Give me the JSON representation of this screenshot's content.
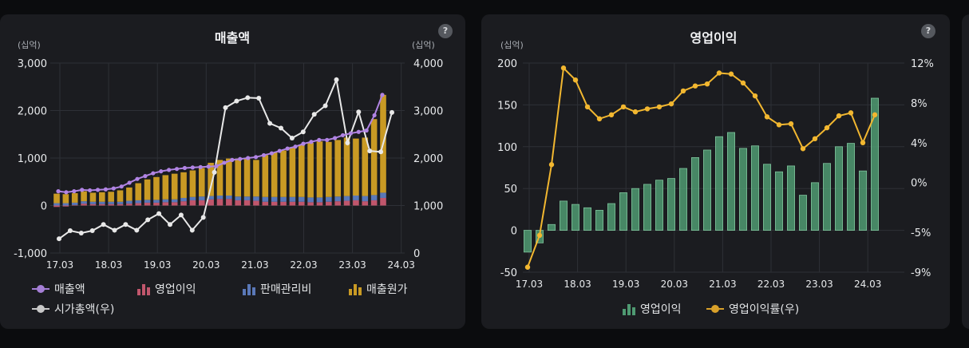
{
  "left_panel": {
    "title": "매출액",
    "help": "?",
    "unit_left": "(십억)",
    "unit_right": "(십억)",
    "legend": [
      {
        "label": "매출액",
        "kind": "dot",
        "color": "#a57fd6"
      },
      {
        "label": "영업이익",
        "kind": "bar",
        "color": "#c0566c"
      },
      {
        "label": "판매관리비",
        "kind": "bar",
        "color": "#5a78b8"
      },
      {
        "label": "매출원가",
        "kind": "bar",
        "color": "#c99a24"
      },
      {
        "label": "시가총액(우)",
        "kind": "dot",
        "color": "#c8c8c8"
      }
    ]
  },
  "right_panel": {
    "title": "영업이익",
    "help": "?",
    "unit_left": "(십억)",
    "legend": [
      {
        "label": "영업이익",
        "kind": "bar",
        "color": "#4f9a72"
      },
      {
        "label": "영업이익률(우)",
        "kind": "dot",
        "color": "#d9a12a"
      }
    ]
  },
  "chart_data": [
    {
      "type": "bar",
      "title": "매출액",
      "ylabel": "(십억)",
      "y2label": "(십억)",
      "ylim": [
        -1000,
        3000
      ],
      "y2lim": [
        0,
        4000
      ],
      "yticks": [
        "3,000",
        "2,000",
        "1,000",
        "0",
        "-1,000"
      ],
      "y2ticks": [
        "4,000",
        "3,000",
        "2,000",
        "1,000",
        "0"
      ],
      "xticks": [
        "17.03",
        "18.03",
        "19.03",
        "20.03",
        "21.03",
        "22.03",
        "23.03",
        "24.03"
      ],
      "series": [
        {
          "name": "매출원가",
          "stacked": true,
          "values": [
            200,
            190,
            200,
            210,
            190,
            200,
            210,
            240,
            280,
            360,
            430,
            480,
            510,
            540,
            540,
            560,
            600,
            700,
            750,
            780,
            800,
            790,
            770,
            880,
            940,
            980,
            1050,
            1100,
            1150,
            1180,
            1160,
            1190,
            1230,
            1200,
            1230,
            1600,
            2060
          ]
        },
        {
          "name": "판매관리비",
          "stacked": true,
          "values": [
            50,
            50,
            50,
            50,
            50,
            50,
            50,
            50,
            60,
            60,
            60,
            60,
            60,
            60,
            70,
            70,
            80,
            70,
            70,
            70,
            80,
            80,
            90,
            100,
            100,
            100,
            100,
            100,
            100,
            100,
            100,
            100,
            100,
            100,
            110,
            110,
            110
          ]
        },
        {
          "name": "영업이익",
          "stacked": true,
          "values": [
            -30,
            -20,
            10,
            40,
            30,
            30,
            30,
            30,
            40,
            50,
            60,
            60,
            70,
            70,
            90,
            110,
            110,
            130,
            140,
            140,
            110,
            110,
            100,
            80,
            80,
            80,
            80,
            80,
            70,
            70,
            80,
            90,
            100,
            110,
            90,
            110,
            160
          ]
        },
        {
          "name": "매출액",
          "type": "line",
          "values": [
            300,
            280,
            300,
            330,
            320,
            330,
            340,
            360,
            400,
            480,
            560,
            620,
            680,
            720,
            750,
            770,
            790,
            800,
            810,
            820,
            830,
            900,
            960,
            980,
            1000,
            1020,
            1060,
            1100,
            1150,
            1200,
            1240,
            1300,
            1340,
            1380,
            1380,
            1420,
            1480,
            1520,
            1550,
            1580,
            1900,
            2330
          ]
        },
        {
          "name": "시가총액(우)",
          "type": "line",
          "axis": "right",
          "values": [
            300,
            470,
            420,
            470,
            600,
            480,
            600,
            480,
            700,
            830,
            600,
            800,
            480,
            750,
            1700,
            3060,
            3200,
            3270,
            3260,
            2730,
            2630,
            2420,
            2550,
            2920,
            3100,
            3650,
            2320,
            2970,
            2150,
            2130,
            2960
          ]
        }
      ]
    },
    {
      "type": "bar",
      "title": "영업이익",
      "ylabel": "(십억)",
      "ylim": [
        -50,
        200
      ],
      "y2lim": [
        -9,
        12
      ],
      "yticks": [
        "200",
        "150",
        "100",
        "50",
        "0",
        "-50"
      ],
      "y2ticks": [
        "12%",
        "8%",
        "4%",
        "0%",
        "-5%",
        "-9%"
      ],
      "xticks": [
        "17.03",
        "18.03",
        "19.03",
        "20.03",
        "21.03",
        "22.03",
        "23.03",
        "24.03"
      ],
      "series": [
        {
          "name": "영업이익",
          "values": [
            -26,
            -15,
            7,
            35,
            31,
            27,
            24,
            32,
            45,
            50,
            55,
            60,
            62,
            74,
            87,
            96,
            112,
            117,
            98,
            101,
            79,
            70,
            77,
            42,
            57,
            80,
            100,
            104,
            71,
            158
          ]
        },
        {
          "name": "영업이익률(우)",
          "type": "line",
          "axis": "right",
          "unit": "%",
          "values": [
            -8.5,
            -5.3,
            1.8,
            11.5,
            10.3,
            7.6,
            6.4,
            6.8,
            7.6,
            7.1,
            7.4,
            7.6,
            7.9,
            9.2,
            9.7,
            9.9,
            11.0,
            10.9,
            10.0,
            8.7,
            6.6,
            5.8,
            5.9,
            3.4,
            4.4,
            5.5,
            6.7,
            7.0,
            4.0,
            6.8
          ]
        }
      ]
    }
  ]
}
